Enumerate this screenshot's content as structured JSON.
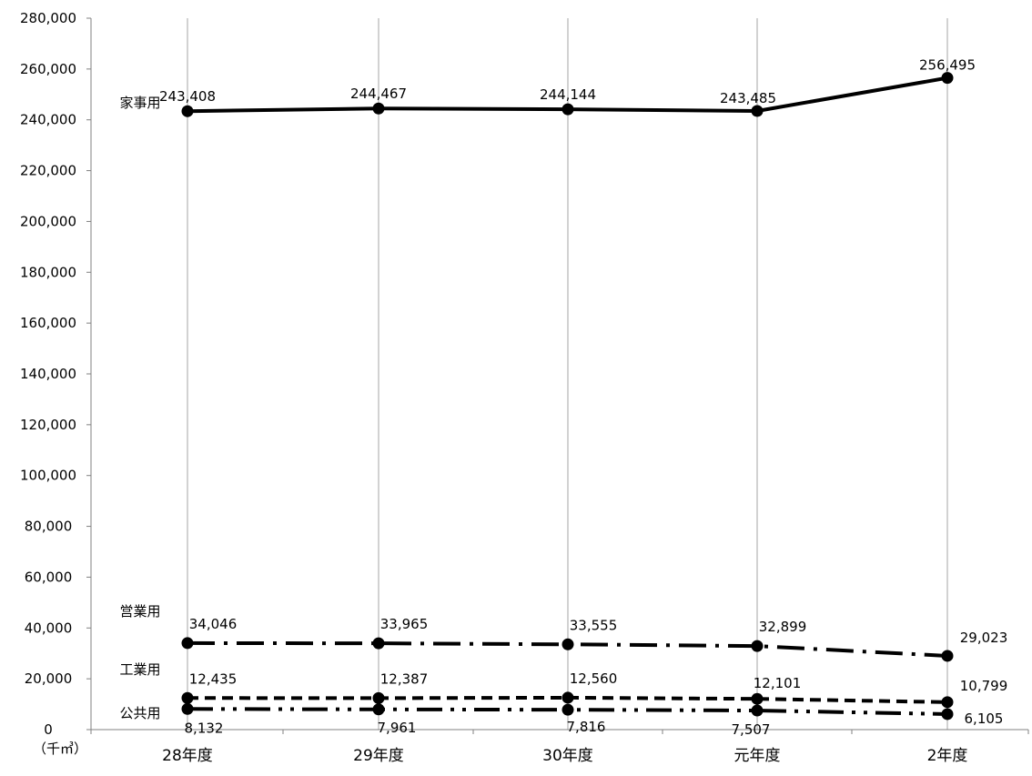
{
  "chart_data": {
    "type": "line",
    "title": "",
    "xlabel": "",
    "ylabel": "",
    "unit_label": "（千㎥）",
    "categories": [
      "28年度",
      "29年度",
      "30年度",
      "元年度",
      "2年度"
    ],
    "ylim": [
      0,
      280000
    ],
    "yticks": [
      0,
      20000,
      40000,
      60000,
      80000,
      100000,
      120000,
      140000,
      160000,
      180000,
      200000,
      220000,
      240000,
      260000,
      280000
    ],
    "ytick_labels": [
      "0",
      "20,000",
      "40,000",
      "60,000",
      "80,000",
      "100,000",
      "120,000",
      "140,000",
      "160,000",
      "180,000",
      "200,000",
      "220,000",
      "240,000",
      "260,000",
      "280,000"
    ],
    "grid": "vertical",
    "legend": "inline-left",
    "series": [
      {
        "name": "家事用",
        "style": "solid",
        "values": [
          243408,
          244467,
          244144,
          243485,
          256495
        ],
        "labels": [
          "243,408",
          "244,467",
          "244,144",
          "243,485",
          "256,495"
        ]
      },
      {
        "name": "営業用",
        "style": "dash-dot",
        "values": [
          34046,
          33965,
          33555,
          32899,
          29023
        ],
        "labels": [
          "34,046",
          "33,965",
          "33,555",
          "32,899",
          "29,023"
        ]
      },
      {
        "name": "工業用",
        "style": "dashed",
        "values": [
          12435,
          12387,
          12560,
          12101,
          10799
        ],
        "labels": [
          "12,435",
          "12,387",
          "12,560",
          "12,101",
          "10,799"
        ]
      },
      {
        "name": "公共用",
        "style": "dash-dot-dot",
        "values": [
          8132,
          7961,
          7816,
          7507,
          6105
        ],
        "labels": [
          "8,132",
          "7,961",
          "7,816",
          "7,507",
          "6,105"
        ]
      }
    ],
    "colors": {
      "line": "#000000",
      "grid": "#a6a6a6",
      "axis": "#808080"
    }
  }
}
